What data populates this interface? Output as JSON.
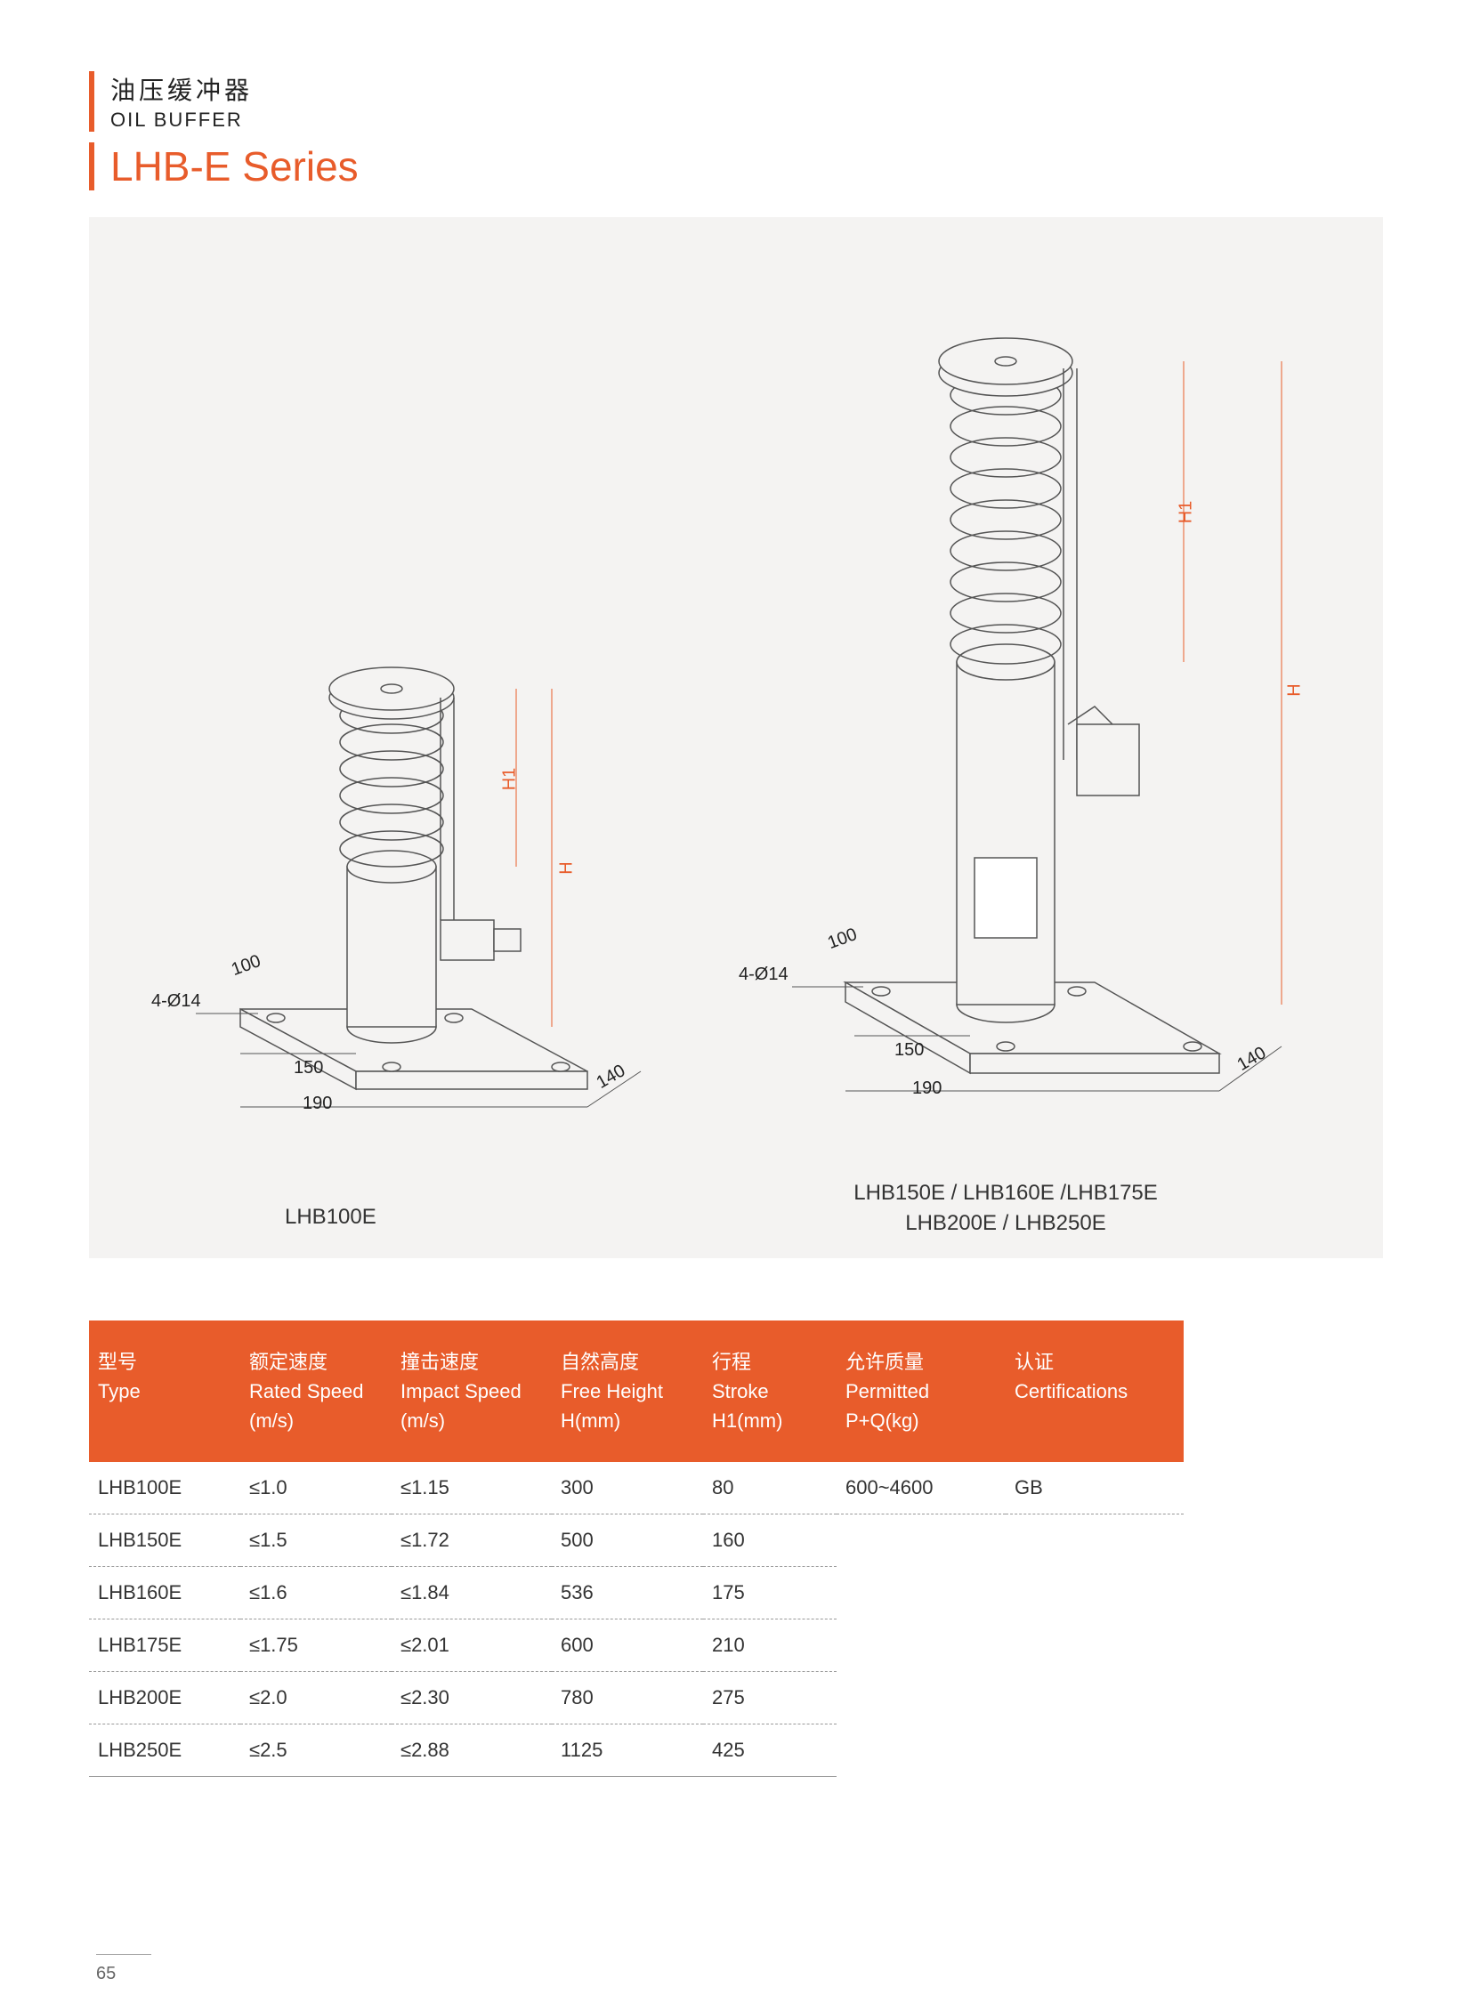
{
  "header": {
    "title_cn": "油压缓冲器",
    "title_en": "OIL BUFFER",
    "series": "LHB-E Series"
  },
  "diagrams": {
    "background_color": "#f4f3f2",
    "accent_color": "#e85c2b",
    "line_color": "#555555",
    "left": {
      "caption": "LHB100E",
      "dims": {
        "hole": "4-Ø14",
        "d100": "100",
        "d150": "150",
        "d190": "190",
        "d140": "140",
        "H": "H",
        "H1": "H1"
      }
    },
    "right": {
      "caption_line1": "LHB150E / LHB160E /LHB175E",
      "caption_line2": "LHB200E / LHB250E",
      "dims": {
        "hole": "4-Ø14",
        "d100": "100",
        "d150": "150",
        "d190": "190",
        "d140": "140",
        "H": "H",
        "H1": "H1"
      }
    }
  },
  "table": {
    "header_bg": "#e85c2b",
    "header_fg": "#ffffff",
    "columns": [
      {
        "cn": "型号",
        "en": "Type",
        "unit": ""
      },
      {
        "cn": "额定速度",
        "en": "Rated Speed",
        "unit": "(m/s)"
      },
      {
        "cn": "撞击速度",
        "en": "Impact Speed",
        "unit": "(m/s)"
      },
      {
        "cn": "自然高度",
        "en": "Free Height",
        "unit": "H(mm)"
      },
      {
        "cn": "行程",
        "en": "Stroke",
        "unit": "H1(mm)"
      },
      {
        "cn": "允许质量",
        "en": "Permitted",
        "unit": "P+Q(kg)"
      },
      {
        "cn": "认证",
        "en": "Certifications",
        "unit": ""
      }
    ],
    "rows": [
      [
        "LHB100E",
        "≤1.0",
        "≤1.15",
        "300",
        "80",
        "600~4600",
        "GB"
      ],
      [
        "LHB150E",
        "≤1.5",
        "≤1.72",
        "500",
        "160",
        "",
        ""
      ],
      [
        "LHB160E",
        "≤1.6",
        "≤1.84",
        "536",
        "175",
        "",
        ""
      ],
      [
        "LHB175E",
        "≤1.75",
        "≤2.01",
        "600",
        "210",
        "",
        ""
      ],
      [
        "LHB200E",
        "≤2.0",
        "≤2.30",
        "780",
        "275",
        "",
        ""
      ],
      [
        "LHB250E",
        "≤2.5",
        "≤2.88",
        "1125",
        "425",
        "",
        ""
      ]
    ]
  },
  "page_number": "65"
}
